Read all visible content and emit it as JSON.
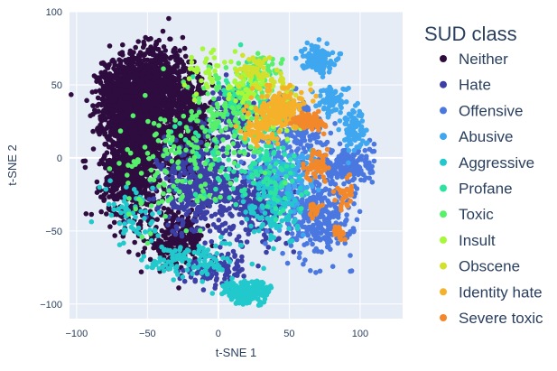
{
  "chart_data": {
    "type": "scatter",
    "xlabel": "t-SNE 1",
    "ylabel": "t-SNE 2",
    "xlim": [
      -105,
      130
    ],
    "ylim": [
      -110,
      100
    ],
    "xticks": [
      -100,
      -50,
      0,
      50,
      100
    ],
    "yticks": [
      -100,
      -50,
      0,
      50,
      100
    ],
    "grid": true,
    "background": "#e5ecf6",
    "legend": {
      "title": "SUD class",
      "placement": "right"
    },
    "series": [
      {
        "name": "Neither",
        "color": "#2f0c3f",
        "blobs": [
          [
            -55,
            35,
            22,
            32,
            1500
          ],
          [
            -40,
            55,
            18,
            20,
            350
          ],
          [
            -60,
            -10,
            20,
            30,
            700
          ],
          [
            -20,
            20,
            14,
            28,
            450
          ],
          [
            -30,
            -55,
            18,
            18,
            250
          ],
          [
            -75,
            40,
            10,
            25,
            200
          ]
        ]
      },
      {
        "name": "Hate",
        "color": "#3b3fa6",
        "blobs": [
          [
            -10,
            -20,
            28,
            30,
            500
          ],
          [
            10,
            30,
            14,
            18,
            140
          ],
          [
            30,
            -30,
            18,
            25,
            220
          ],
          [
            0,
            -75,
            22,
            10,
            110
          ]
        ]
      },
      {
        "name": "Offensive",
        "color": "#4a78e0",
        "blobs": [
          [
            70,
            -40,
            22,
            25,
            300
          ],
          [
            90,
            -5,
            18,
            12,
            200
          ],
          [
            55,
            20,
            20,
            22,
            160
          ],
          [
            40,
            -10,
            18,
            25,
            120
          ]
        ]
      },
      {
        "name": "Abusive",
        "color": "#3fa7f0",
        "blobs": [
          [
            70,
            68,
            10,
            8,
            140
          ],
          [
            95,
            20,
            8,
            14,
            90
          ],
          [
            50,
            -15,
            18,
            20,
            110
          ],
          [
            80,
            40,
            10,
            8,
            70
          ]
        ]
      },
      {
        "name": "Aggressive",
        "color": "#22c9cc",
        "blobs": [
          [
            20,
            -92,
            15,
            7,
            220
          ],
          [
            -20,
            -70,
            28,
            12,
            110
          ],
          [
            40,
            -30,
            20,
            30,
            140
          ],
          [
            -60,
            -40,
            18,
            20,
            60
          ]
        ]
      },
      {
        "name": "Profane",
        "color": "#2ce4a0",
        "blobs": [
          [
            20,
            40,
            18,
            18,
            90
          ],
          [
            35,
            -10,
            20,
            28,
            80
          ],
          [
            0,
            0,
            28,
            30,
            60
          ]
        ]
      },
      {
        "name": "Toxic",
        "color": "#56f06a",
        "blobs": [
          [
            10,
            30,
            25,
            30,
            120
          ],
          [
            -20,
            0,
            28,
            35,
            90
          ],
          [
            -50,
            -20,
            22,
            30,
            50
          ],
          [
            30,
            60,
            14,
            10,
            50
          ]
        ]
      },
      {
        "name": "Insult",
        "color": "#a7f73b",
        "blobs": [
          [
            20,
            50,
            14,
            14,
            50
          ],
          [
            -10,
            60,
            14,
            12,
            35
          ],
          [
            40,
            30,
            18,
            18,
            40
          ]
        ]
      },
      {
        "name": "Obscene",
        "color": "#d3e02c",
        "blobs": [
          [
            25,
            60,
            10,
            8,
            40
          ],
          [
            40,
            50,
            14,
            10,
            40
          ]
        ]
      },
      {
        "name": "Identity hate",
        "color": "#f5b12a",
        "blobs": [
          [
            45,
            35,
            14,
            12,
            170
          ],
          [
            30,
            20,
            14,
            10,
            70
          ]
        ]
      },
      {
        "name": "Severe toxic",
        "color": "#f3882a",
        "blobs": [
          [
            65,
            25,
            9,
            5,
            110
          ],
          [
            70,
            -5,
            8,
            9,
            50
          ],
          [
            90,
            -25,
            6,
            9,
            30
          ],
          [
            85,
            -50,
            5,
            6,
            20
          ],
          [
            68,
            -35,
            5,
            5,
            25
          ]
        ]
      }
    ]
  }
}
